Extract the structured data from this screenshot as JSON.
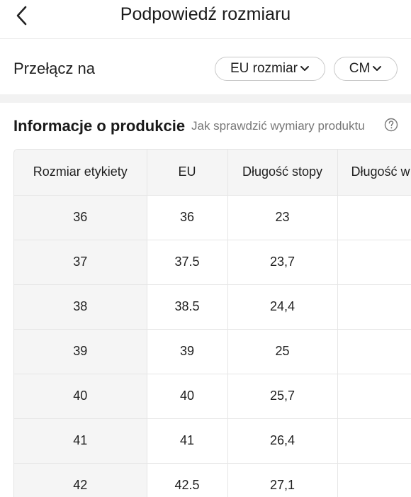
{
  "header": {
    "title": "Podpowiedź rozmiaru",
    "back_icon": "chevron-left-icon"
  },
  "switch": {
    "label": "Przełącz na",
    "size_system": "EU rozmiar",
    "unit": "CM"
  },
  "info": {
    "title": "Informacje o produkcie",
    "link": "Jak sprawdzić wymiary produktu",
    "help_icon": "question-circle-icon"
  },
  "table": {
    "headers": [
      "Rozmiar etykiety",
      "EU",
      "Długość stopy",
      "Długość w"
    ],
    "rows": [
      [
        "36",
        "36",
        "23",
        ""
      ],
      [
        "37",
        "37.5",
        "23,7",
        ""
      ],
      [
        "38",
        "38.5",
        "24,4",
        ""
      ],
      [
        "39",
        "39",
        "25",
        ""
      ],
      [
        "40",
        "40",
        "25,7",
        ""
      ],
      [
        "41",
        "41",
        "26,4",
        ""
      ],
      [
        "42",
        "42.5",
        "27,1",
        ""
      ]
    ]
  }
}
